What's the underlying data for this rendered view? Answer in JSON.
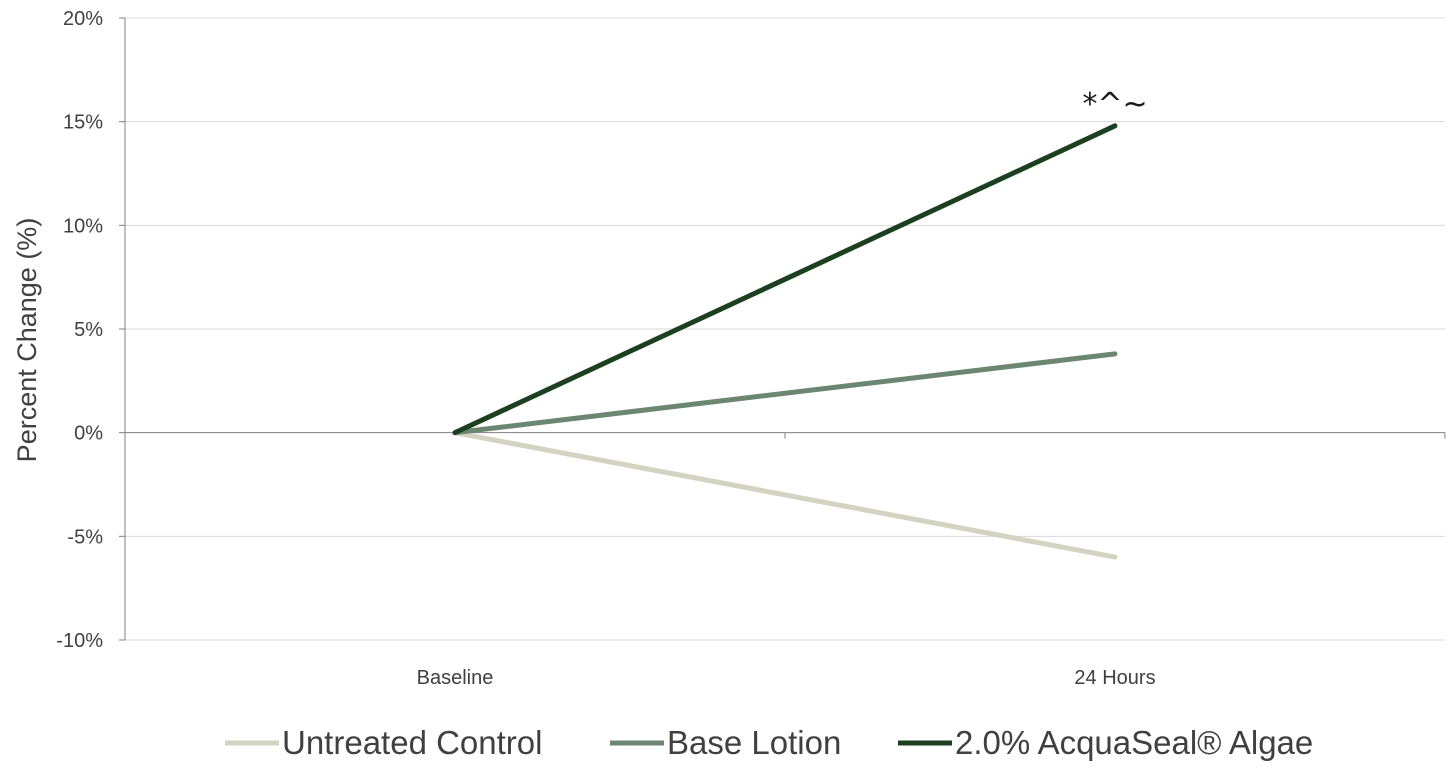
{
  "chart_data": {
    "type": "line",
    "categories": [
      "Baseline",
      "24 Hours"
    ],
    "series": [
      {
        "name": "Untreated Control",
        "values": [
          0,
          -6.0
        ],
        "color": "#d4d2c0"
      },
      {
        "name": "Base Lotion",
        "values": [
          0,
          3.8
        ],
        "color": "#6b8771"
      },
      {
        "name": "2.0% AcquaSeal® Algae",
        "values": [
          0,
          14.8
        ],
        "color": "#1c3f1f"
      }
    ],
    "ylabel": "Percent Change (%)",
    "ylim": [
      -10,
      20
    ],
    "yticks": [
      20,
      15,
      10,
      5,
      0,
      -5,
      -10
    ],
    "ytick_labels": [
      "20%",
      "15%",
      "10%",
      "5%",
      "0%",
      "-5%",
      "-10%"
    ],
    "annotations": [
      {
        "text": "*^~",
        "category": "24 Hours",
        "y": 14.8
      }
    ],
    "grid": true,
    "legend": "bottom"
  }
}
